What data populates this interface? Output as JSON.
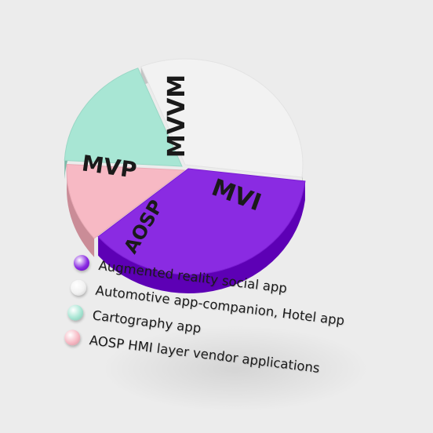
{
  "chart_data": {
    "type": "pie",
    "slices": [
      {
        "label": "MVVM",
        "value": 33,
        "color": "#f2f2f2"
      },
      {
        "label": "MVI",
        "value": 37,
        "color": "#8a2be2"
      },
      {
        "label": "AOSP",
        "value": 12,
        "color": "#f7b9c4"
      },
      {
        "label": "MVP",
        "value": 18,
        "color": "#a8e6d4"
      }
    ]
  },
  "legend": [
    {
      "text": "Augmented reality social app",
      "color": "#8a2be2"
    },
    {
      "text": "Automotive app-companion, Hotel app",
      "color": "#f2f2f2"
    },
    {
      "text": "Cartography app",
      "color": "#a8e6d4"
    },
    {
      "text": "AOSP HMI layer vendor applications",
      "color": "#f7b9c4"
    }
  ]
}
